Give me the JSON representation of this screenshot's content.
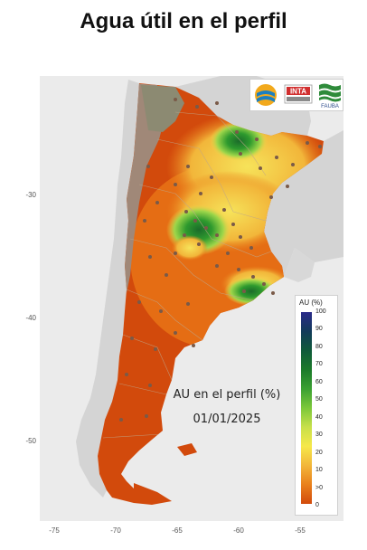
{
  "title": "Agua útil en el perfil",
  "map": {
    "overlay_label": "AU en el perfil (%)",
    "overlay_date": "01/01/2025",
    "y_ticks": [
      "-30",
      "-40",
      "-50"
    ],
    "x_ticks": [
      "-75",
      "-70",
      "-65",
      "-60",
      "-55"
    ],
    "colors": {
      "background": "#ebebeb",
      "dry": "#d24a0c",
      "low": "#e9801c",
      "mid": "#f6d84a",
      "moist": "#9ed64a",
      "wet": "#2e9a2e",
      "very_wet": "#1b6b2a",
      "no_data": "#a08878",
      "neighbor": "#d4d4d4"
    }
  },
  "logos": {
    "inta": "INTA",
    "fauba": "FAUBA"
  },
  "legend": {
    "title": "AU (%)",
    "labels": [
      "100",
      "90",
      "80",
      "70",
      "60",
      "50",
      "40",
      "30",
      "20",
      "10",
      ">0",
      "0"
    ]
  }
}
